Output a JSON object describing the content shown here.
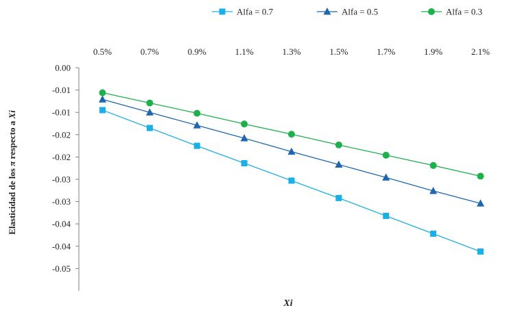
{
  "chart_data": {
    "type": "line",
    "title": "",
    "xlabel": "Xi",
    "ylabel": "Elasticidad  de  los π respecto a Xi",
    "ylabel_parts": [
      "Elasticidad  de  los ",
      "π",
      " respecto a ",
      "Xi"
    ],
    "categories": [
      "0.5%",
      "0.7%",
      "0.9%",
      "1.1%",
      "1.3%",
      "1.5%",
      "1.7%",
      "1.9%",
      "2.1%"
    ],
    "y_tick_labels": [
      "0.00",
      "-0.01",
      "-0.01",
      "-0.02",
      "-0.02",
      "-0.03",
      "-0.03",
      "-0.04",
      "-0.04",
      "-0.05"
    ],
    "ylim": [
      -0.05,
      0
    ],
    "y_tick_step": 0.005,
    "x_axis_position": "top",
    "grid": false,
    "legend_position": "top-right",
    "series": [
      {
        "name": "Alfa = 0.7",
        "color": "#1aafe6",
        "marker": "square",
        "values": [
          -0.0095,
          -0.0135,
          -0.0175,
          -0.0214,
          -0.0253,
          -0.0292,
          -0.0332,
          -0.0372,
          -0.0412
        ]
      },
      {
        "name": "Alfa = 0.5",
        "color": "#1f66b0",
        "marker": "triangle",
        "values": [
          -0.0071,
          -0.01,
          -0.0129,
          -0.0158,
          -0.0188,
          -0.0217,
          -0.0246,
          -0.0276,
          -0.0304
        ]
      },
      {
        "name": "Alfa = 0.3",
        "color": "#1db04b",
        "marker": "circle",
        "values": [
          -0.0056,
          -0.0079,
          -0.0102,
          -0.0126,
          -0.0149,
          -0.0173,
          -0.0196,
          -0.0219,
          -0.0243
        ]
      }
    ]
  }
}
